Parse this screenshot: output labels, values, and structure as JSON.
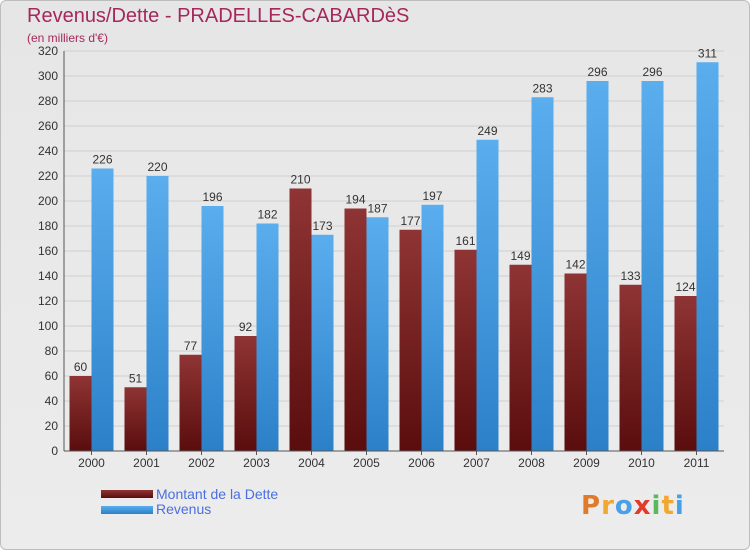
{
  "chart_data": {
    "type": "bar",
    "title": "Revenus/Dette - PRADELLES-CABARDèS",
    "subtitle": "(en milliers d'€)",
    "categories": [
      "2000",
      "2001",
      "2002",
      "2003",
      "2004",
      "2005",
      "2006",
      "2007",
      "2008",
      "2009",
      "2010",
      "2011"
    ],
    "series": [
      {
        "name": "Montant de la Dette",
        "color": "#7a1e1e",
        "values": [
          60,
          51,
          77,
          92,
          210,
          194,
          177,
          161,
          149,
          142,
          133,
          124
        ]
      },
      {
        "name": "Revenus",
        "color": "#4aa0e6",
        "values": [
          226,
          220,
          196,
          182,
          173,
          187,
          197,
          249,
          283,
          296,
          296,
          311
        ]
      }
    ],
    "ylim": [
      0,
      320
    ],
    "ytick_step": 20,
    "grid": true,
    "legend_position": "bottom-left"
  },
  "logo": {
    "letters": [
      "P",
      "r",
      "o",
      "x",
      "i",
      "t",
      "i"
    ],
    "colors": [
      "#e07b2a",
      "#f0a830",
      "#4aa0e6",
      "#e23b2a",
      "#5cb85c",
      "#f0a830",
      "#4aa0e6"
    ]
  }
}
